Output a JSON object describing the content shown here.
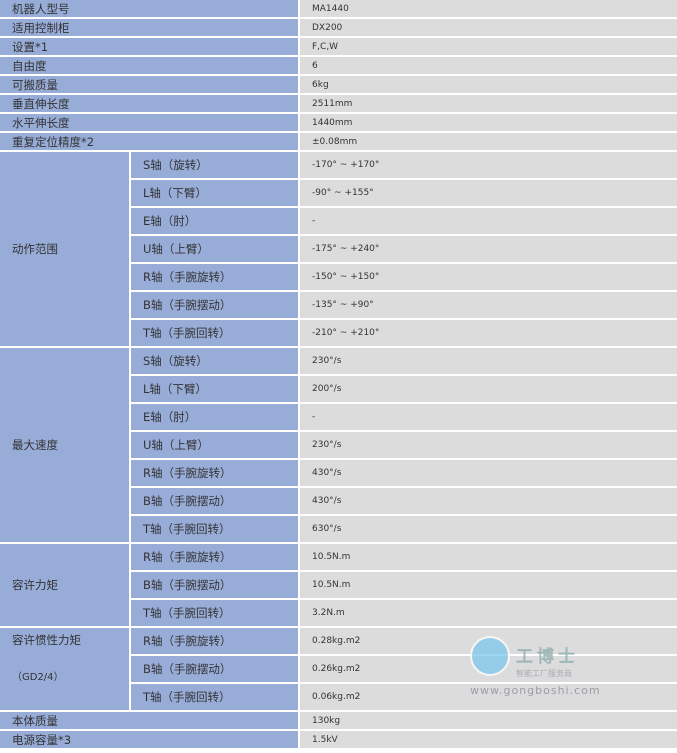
{
  "top_rows": [
    {
      "label": "机器人型号",
      "value": "MA1440"
    },
    {
      "label": "适用控制柜",
      "value": "DX200"
    },
    {
      "label": "设置*1",
      "value": "F,C,W"
    },
    {
      "label": "自由度",
      "value": "6"
    },
    {
      "label": "可搬质量",
      "value": "6kg"
    },
    {
      "label": "垂直伸长度",
      "value": "2511mm"
    },
    {
      "label": "水平伸长度",
      "value": "1440mm"
    },
    {
      "label": "重复定位精度*2",
      "value": "±0.08mm"
    }
  ],
  "groups": [
    {
      "label": "动作范围",
      "rows": [
        {
          "axis": "S轴（旋转）",
          "value": "-170° ~ +170°"
        },
        {
          "axis": "L轴（下臂）",
          "value": "-90° ~ +155°"
        },
        {
          "axis": "E轴（肘）",
          "value": "-"
        },
        {
          "axis": "U轴（上臂）",
          "value": "-175° ~ +240°"
        },
        {
          "axis": "R轴（手腕旋转）",
          "value": "-150° ~ +150°"
        },
        {
          "axis": "B轴（手腕摆动）",
          "value": "-135° ~ +90°"
        },
        {
          "axis": "T轴（手腕回转）",
          "value": "-210° ~ +210°"
        }
      ]
    },
    {
      "label": "最大速度",
      "rows": [
        {
          "axis": "S轴（旋转）",
          "value": "230°/s"
        },
        {
          "axis": "L轴（下臂）",
          "value": "200°/s"
        },
        {
          "axis": "E轴（肘）",
          "value": "-"
        },
        {
          "axis": "U轴（上臂）",
          "value": "230°/s"
        },
        {
          "axis": "R轴（手腕旋转）",
          "value": "430°/s"
        },
        {
          "axis": "B轴（手腕摆动）",
          "value": "430°/s"
        },
        {
          "axis": "T轴（手腕回转）",
          "value": "630°/s"
        }
      ]
    },
    {
      "label": "容许力矩",
      "rows": [
        {
          "axis": "R轴（手腕旋转）",
          "value": "10.5N.m"
        },
        {
          "axis": "B轴（手腕摆动）",
          "value": "10.5N.m"
        },
        {
          "axis": "T轴（手腕回转）",
          "value": "3.2N.m"
        }
      ]
    },
    {
      "label": "容许惯性力矩",
      "sublabel": "（GD2/4）",
      "rows": [
        {
          "axis": "R轴（手腕旋转）",
          "value": "0.28kg.m2"
        },
        {
          "axis": "B轴（手腕摆动）",
          "value": "0.26kg.m2"
        },
        {
          "axis": "T轴（手腕回转）",
          "value": "0.06kg.m2"
        }
      ]
    }
  ],
  "bottom_rows": [
    {
      "label": "本体质量",
      "value": "130kg"
    },
    {
      "label": "电源容量*3",
      "value": "1.5kV"
    }
  ],
  "watermark": {
    "brand": "工博士",
    "slogan": "智能工厂服务商",
    "url": "www.gongboshi.com"
  },
  "colors": {
    "label_bg": "#98acd8",
    "value_bg": "#dcdcdc"
  }
}
